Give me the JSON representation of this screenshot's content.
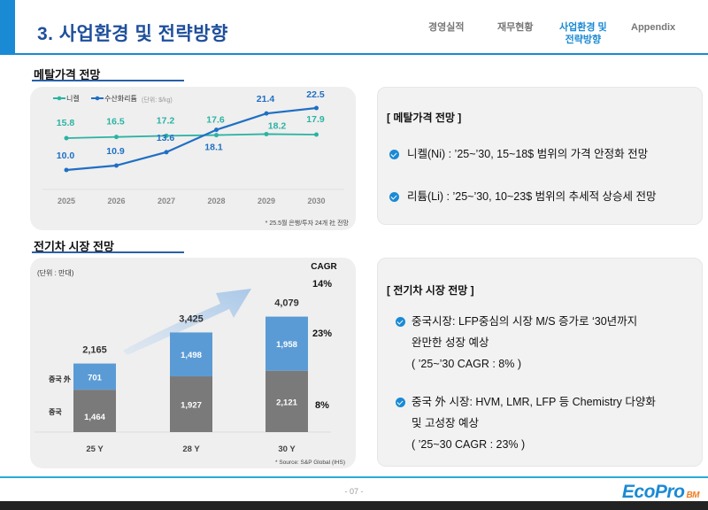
{
  "header": {
    "title": "3. 사업환경 및 전략방향",
    "nav": [
      {
        "label": "경영실적",
        "active": false
      },
      {
        "label": "재무현황",
        "active": false
      },
      {
        "label": "사업환경 및\n전략방향",
        "line1": "사업환경 및",
        "line2": "전략방향",
        "active": true
      },
      {
        "label": "Appendix",
        "active": false
      }
    ]
  },
  "metal_section": {
    "title": "메탈가격 전망",
    "footnote": "* 25.5월 은행/투자 24개 社 전망",
    "info": {
      "title": "[ 메탈가격 전망 ]",
      "bullets": [
        "니켈(Ni) : ’25~’30, 15~18$ 범위의 가격 안정화 전망",
        "리튬(Li)  : ’25~’30, 10~23$ 범위의 추세적 상승세 전망"
      ]
    }
  },
  "ev_section": {
    "title": "전기차 시장 전망",
    "footnote": "* Source: S&P Global (IHS)",
    "info": {
      "title": "[ 전기차 시장 전망 ]",
      "bullets": [
        {
          "lines": [
            "중국시장: LFP중심의 시장 M/S 증가로 ‘30년까지",
            "완만한 성장 예상",
            "( ’25~’30 CAGR : 8% )"
          ]
        },
        {
          "lines": [
            "중국 外 시장: HVM, LMR, LFP 등 Chemistry 다양화",
            "및 고성장 예상",
            "( ’25~30 CAGR : 23% )"
          ]
        }
      ]
    }
  },
  "chart_data": [
    {
      "type": "line",
      "title": "메탈가격 전망",
      "unit": "(단위: $/kg)",
      "x": [
        "2025",
        "2026",
        "2027",
        "2028",
        "2029",
        "2030"
      ],
      "series": [
        {
          "name": "니켈",
          "color": "#2bb3a3",
          "values": [
            15.8,
            16.5,
            17.2,
            17.6,
            18.2,
            17.9
          ]
        },
        {
          "name": "수산화리튬",
          "color": "#1f6fc4",
          "values": [
            10.0,
            10.9,
            13.6,
            18.1,
            21.4,
            22.5
          ]
        }
      ],
      "legend": "top-left",
      "grid": false
    },
    {
      "type": "bar",
      "stacked": true,
      "title": "전기차 시장 전망",
      "unit": "(단위 : 만대)",
      "categories": [
        "25 Y",
        "28 Y",
        "30 Y"
      ],
      "series": [
        {
          "name": "중국",
          "color": "#7a7a7a",
          "values": [
            1464,
            1927,
            2121
          ],
          "labels": [
            "1,464",
            "1,927",
            "2,121"
          ]
        },
        {
          "name": "중국 外",
          "color": "#5b9bd5",
          "values": [
            701,
            1498,
            1958
          ],
          "labels": [
            "701",
            "1,498",
            "1,958"
          ]
        }
      ],
      "totals": [
        2165,
        3425,
        4079
      ],
      "total_labels": [
        "2,165",
        "3,425",
        "4,079"
      ],
      "cagr": {
        "header": "CAGR",
        "total": "14%",
        "non_china": "23%",
        "china": "8%"
      },
      "ylim": [
        0,
        4500
      ]
    }
  ],
  "footer": {
    "page": "- 07 -",
    "logo_main": "EcoPro",
    "logo_sub": "BM"
  }
}
